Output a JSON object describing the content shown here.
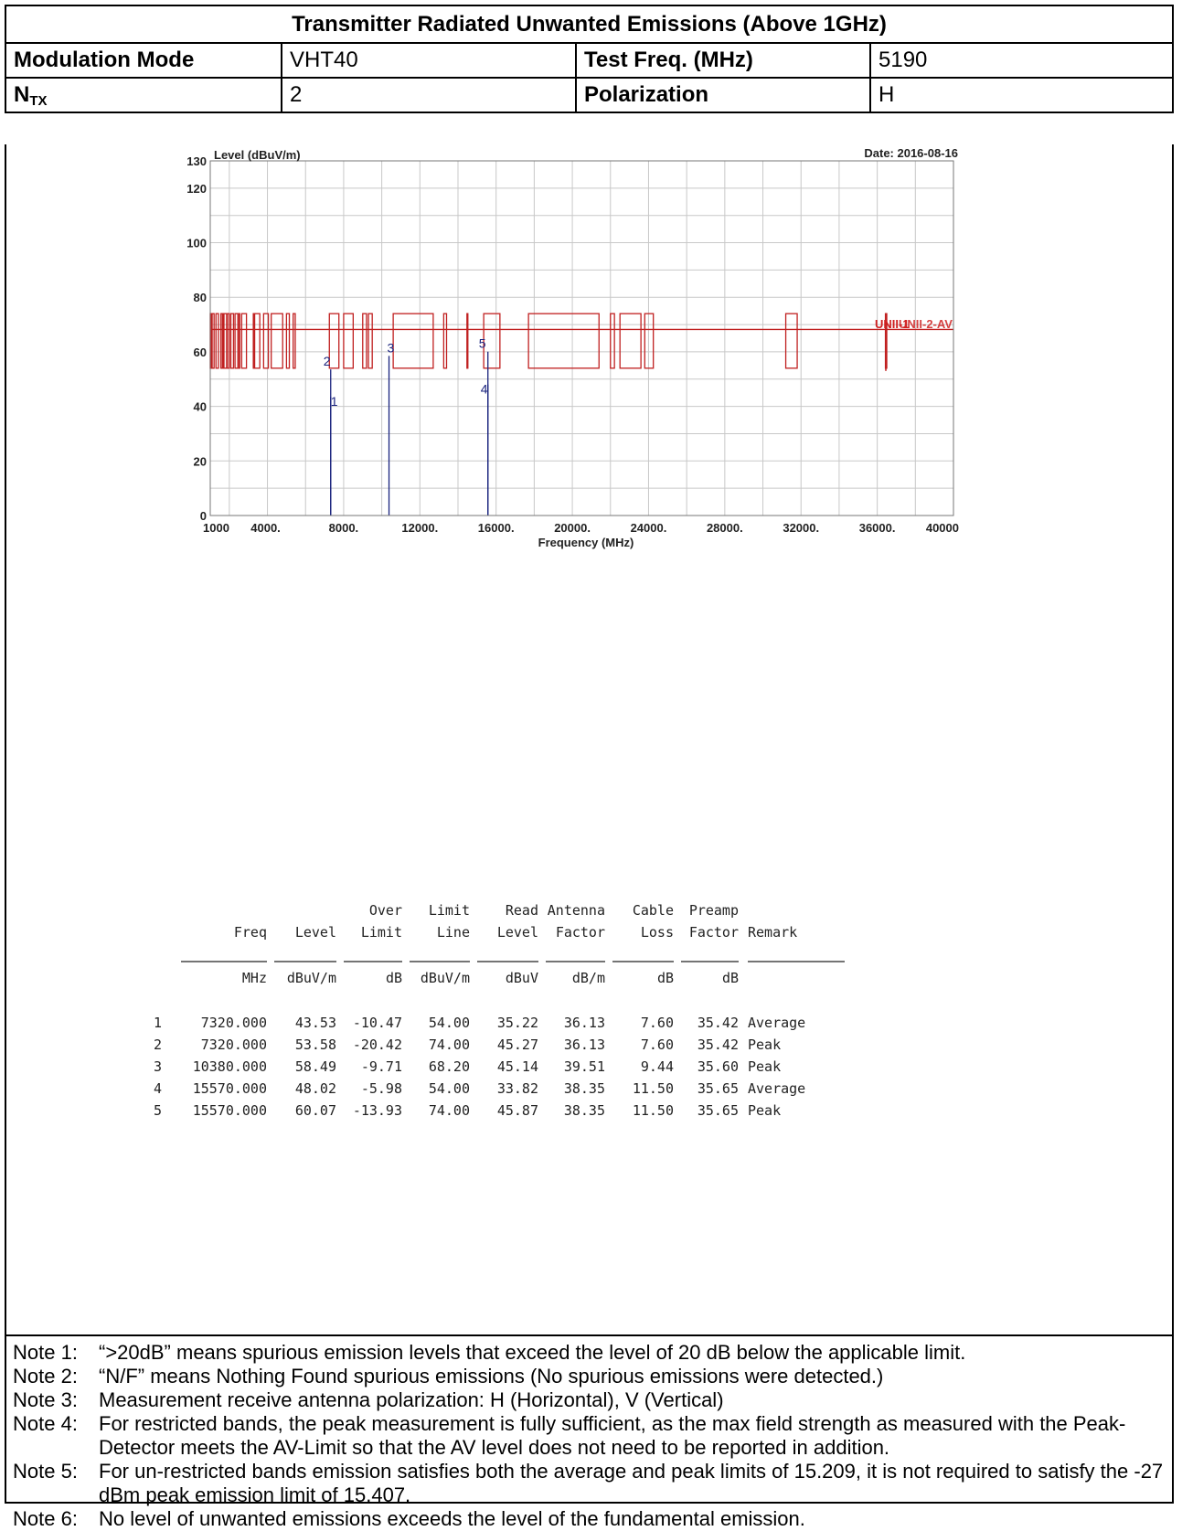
{
  "header": {
    "title": "Transmitter Radiated Unwanted Emissions (Above 1GHz)",
    "modulation_label": "Modulation Mode",
    "modulation_value": "VHT40",
    "testfreq_label": "Test Freq. (MHz)",
    "testfreq_value": "5190",
    "ntx_label_main": "N",
    "ntx_label_sub": "TX",
    "ntx_value": "2",
    "polarization_label": "Polarization",
    "polarization_value": "H"
  },
  "chart_data": {
    "type": "line",
    "ylabel": "Level (dBuV/m)",
    "xlabel": "Frequency (MHz)",
    "date": "Date: 2016-08-16",
    "limit_label": "UNII-1",
    "limit_label_overlap": "UNII-2-AV",
    "xlim": [
      1000,
      40000
    ],
    "ylim": [
      0,
      130
    ],
    "x_ticks": [
      "1000",
      "4000.",
      "8000.",
      "12000.",
      "16000.",
      "20000.",
      "24000.",
      "28000.",
      "32000.",
      "36000.",
      "40000"
    ],
    "y_ticks": [
      0,
      20,
      40,
      60,
      80,
      100,
      120,
      130
    ],
    "limit_line_level": 68.2,
    "limit_line_low": 54,
    "limit_line_high": 74,
    "markers": [
      {
        "id": "1",
        "freq": 7320,
        "level": 43.53
      },
      {
        "id": "2",
        "freq": 7320,
        "level": 53.58
      },
      {
        "id": "3",
        "freq": 10380,
        "level": 58.49
      },
      {
        "id": "4",
        "freq": 15570,
        "level": 48.02
      },
      {
        "id": "5",
        "freq": 15570,
        "level": 60.07
      }
    ]
  },
  "results": {
    "header_row1": [
      "",
      "",
      "Over",
      "Limit",
      "Read",
      "Antenna",
      "Cable",
      "Preamp",
      ""
    ],
    "header_row2": [
      "Freq",
      "Level",
      "Limit",
      "Line",
      "Level",
      "Factor",
      "Loss",
      "Factor",
      "Remark"
    ],
    "units": [
      "MHz",
      "dBuV/m",
      "dB",
      "dBuV/m",
      "dBuV",
      "dB/m",
      "dB",
      "dB",
      ""
    ],
    "rows": [
      [
        "1",
        "7320.000",
        "43.53",
        "-10.47",
        "54.00",
        "35.22",
        "36.13",
        "7.60",
        "35.42",
        "Average"
      ],
      [
        "2",
        "7320.000",
        "53.58",
        "-20.42",
        "74.00",
        "45.27",
        "36.13",
        "7.60",
        "35.42",
        "Peak"
      ],
      [
        "3",
        "10380.000",
        "58.49",
        "-9.71",
        "68.20",
        "45.14",
        "39.51",
        "9.44",
        "35.60",
        "Peak"
      ],
      [
        "4",
        "15570.000",
        "48.02",
        "-5.98",
        "54.00",
        "33.82",
        "38.35",
        "11.50",
        "35.65",
        "Average"
      ],
      [
        "5",
        "15570.000",
        "60.07",
        "-13.93",
        "74.00",
        "45.87",
        "38.35",
        "11.50",
        "35.65",
        "Peak"
      ]
    ]
  },
  "notes": [
    {
      "label": "Note 1:",
      "text": "“>20dB” means spurious emission levels that exceed the level of 20 dB below the applicable limit."
    },
    {
      "label": "Note 2:",
      "text": "“N/F” means Nothing Found spurious emissions (No spurious emissions were detected.)"
    },
    {
      "label": "Note 3:",
      "text": "Measurement receive antenna polarization: H (Horizontal), V (Vertical)"
    },
    {
      "label": "Note 4:",
      "text": "For restricted bands, the peak measurement is fully sufficient, as the max field strength as measured with the Peak-Detector meets the AV-Limit so that the AV level does not need to be reported in addition."
    },
    {
      "label": "Note 5:",
      "text": "For un-restricted bands emission satisfies both the average and peak limits of 15.209, it is not required to satisfy the -27 dBm peak emission limit of 15.407."
    },
    {
      "label": "Note 6:",
      "text": "No level of unwanted emissions exceeds the level of the fundamental emission."
    }
  ]
}
